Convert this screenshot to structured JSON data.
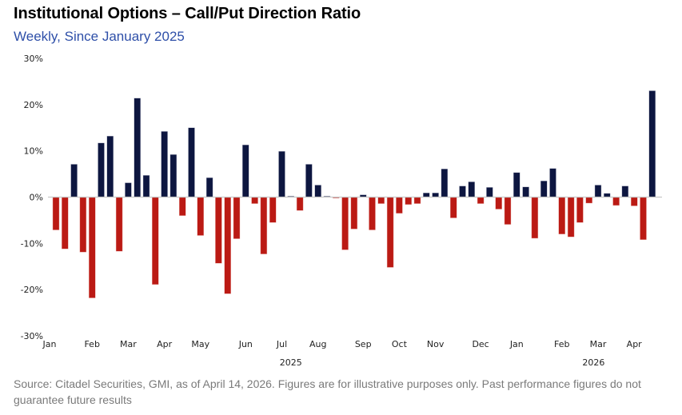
{
  "header": {
    "title": "Institutional Options – Call/Put Direction Ratio",
    "subtitle": "Weekly, Since January 2025"
  },
  "footer": {
    "source": "Source: Citadel Securities, GMI, as of April 14, 2026. Figures are for illustrative purposes only. Past performance figures do not guarantee future results"
  },
  "colors": {
    "positive": "#0d1640",
    "negative": "#bb1a14",
    "baseline": "#c8c8c8"
  },
  "chart_data": {
    "type": "bar",
    "title": "Institutional Options – Call/Put Direction Ratio",
    "subtitle": "Weekly, Since January 2025",
    "xlabel": "",
    "ylabel": "",
    "unit": "%",
    "ylim": [
      -30,
      30
    ],
    "yticks": [
      30,
      20,
      10,
      0,
      -10,
      -20,
      -30
    ],
    "ytick_labels": [
      "30%",
      "20%",
      "10%",
      "0%",
      "-10%",
      "-20%",
      "-30%"
    ],
    "grid": false,
    "legend": "none",
    "month_labels": [
      {
        "label": "Jan",
        "week_index": 0
      },
      {
        "label": "Feb",
        "week_index": 4
      },
      {
        "label": "Mar",
        "week_index": 8
      },
      {
        "label": "Apr",
        "week_index": 12
      },
      {
        "label": "May",
        "week_index": 16
      },
      {
        "label": "Jun",
        "week_index": 21
      },
      {
        "label": "Jul",
        "week_index": 25
      },
      {
        "label": "Aug",
        "week_index": 29
      },
      {
        "label": "Sep",
        "week_index": 34
      },
      {
        "label": "Oct",
        "week_index": 38
      },
      {
        "label": "Nov",
        "week_index": 42
      },
      {
        "label": "Dec",
        "week_index": 47
      },
      {
        "label": "Jan",
        "week_index": 51
      },
      {
        "label": "Feb",
        "week_index": 56
      },
      {
        "label": "Mar",
        "week_index": 60
      },
      {
        "label": "Apr",
        "week_index": 64
      }
    ],
    "year_labels": [
      {
        "label": "2025",
        "week_index": 26
      },
      {
        "label": "2026",
        "week_index": 59.5
      }
    ],
    "series": [
      {
        "name": "Call/Put Direction Ratio",
        "values": [
          -7.1,
          -11.2,
          7.1,
          -11.9,
          -21.8,
          11.7,
          13.2,
          -11.7,
          3.1,
          21.4,
          4.7,
          -18.9,
          14.2,
          9.2,
          -4.0,
          15.0,
          -8.3,
          4.2,
          -14.3,
          -20.9,
          -9.0,
          11.3,
          -1.4,
          -12.3,
          -5.5,
          9.9,
          0.1,
          -2.9,
          7.1,
          2.6,
          0.1,
          -0.2,
          -11.4,
          -6.9,
          0.5,
          -7.1,
          -1.4,
          -15.2,
          -3.5,
          -1.6,
          -1.4,
          0.9,
          0.9,
          6.1,
          -4.5,
          2.4,
          3.3,
          -1.4,
          2.1,
          -2.6,
          -5.9,
          5.3,
          2.2,
          -8.9,
          3.5,
          6.2,
          -8.0,
          -8.6,
          -5.5,
          -1.3,
          2.6,
          0.8,
          -1.8,
          2.4,
          -1.9,
          -9.2,
          23.0
        ]
      }
    ]
  }
}
